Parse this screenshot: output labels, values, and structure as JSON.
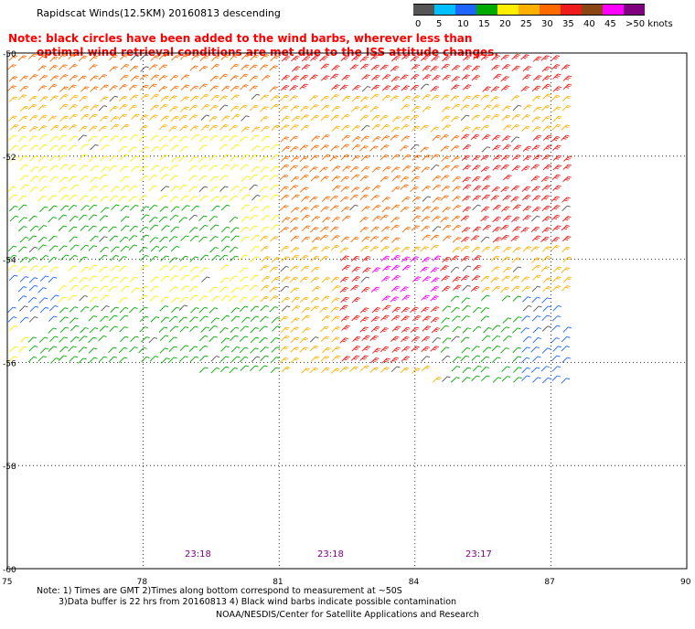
{
  "header": {
    "title": "Rapidscat Winds(12.5KM) 20160813 descending",
    "note_line1": "Note: black circles have been added to the wind barbs, wherever less than",
    "note_line2": "optimal wind retrieval conditions are met due to the ISS attitude changes."
  },
  "legend": {
    "colors": [
      "#555555",
      "#00bfff",
      "#1e64ff",
      "#00aa00",
      "#ffee00",
      "#ffb000",
      "#ff6a00",
      "#ee1c1c",
      "#8b4513",
      "#ff00ff",
      "#800080"
    ],
    "labels": [
      "0",
      "5",
      "10",
      "15",
      "20",
      "25",
      "30",
      "35",
      "40",
      "45",
      ">50 knots"
    ]
  },
  "map": {
    "lon_ticks": [
      "75",
      "78",
      "81",
      "84",
      "87",
      "90"
    ],
    "lat_ticks": [
      "-50",
      "-52",
      "-54",
      "-56",
      "-58",
      "-60"
    ],
    "times": [
      "23:18",
      "23:18",
      "23:17"
    ],
    "wind_speed_unit": "knots"
  },
  "footer": {
    "line1": "Note: 1) Times are GMT 2)Times along bottom correspond to measurement at ~50S",
    "line2": "3)Data buffer is 22 hrs from 20160813 4) Black wind barbs indicate possible contamination",
    "line3": "NOAA/NESDIS/Center for Satellite Applications and Research"
  }
}
